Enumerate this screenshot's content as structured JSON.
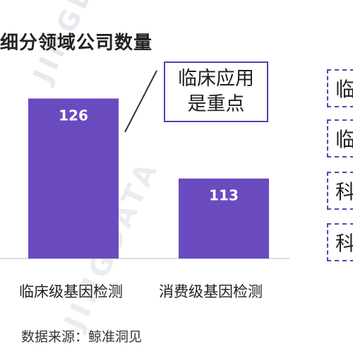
{
  "title": "细分领域公司数量",
  "callout": {
    "line1": "临床应用",
    "line2": "是重点"
  },
  "source": "数据来源：鲸准洞见",
  "watermark": "JINGDATA",
  "side_boxes": [
    "临",
    "临",
    "科",
    "科"
  ],
  "colors": {
    "bar": "#6a4bbf",
    "border": "#5b3fae",
    "text": "#222222"
  },
  "chart_data": {
    "type": "bar",
    "categories": [
      "临床级基因检测",
      "消费级基因检测"
    ],
    "values": [
      126,
      113
    ],
    "title": "细分领域公司数量",
    "xlabel": "",
    "ylabel": "",
    "ylim": [
      100,
      128
    ],
    "grid": false,
    "legend": "none"
  }
}
